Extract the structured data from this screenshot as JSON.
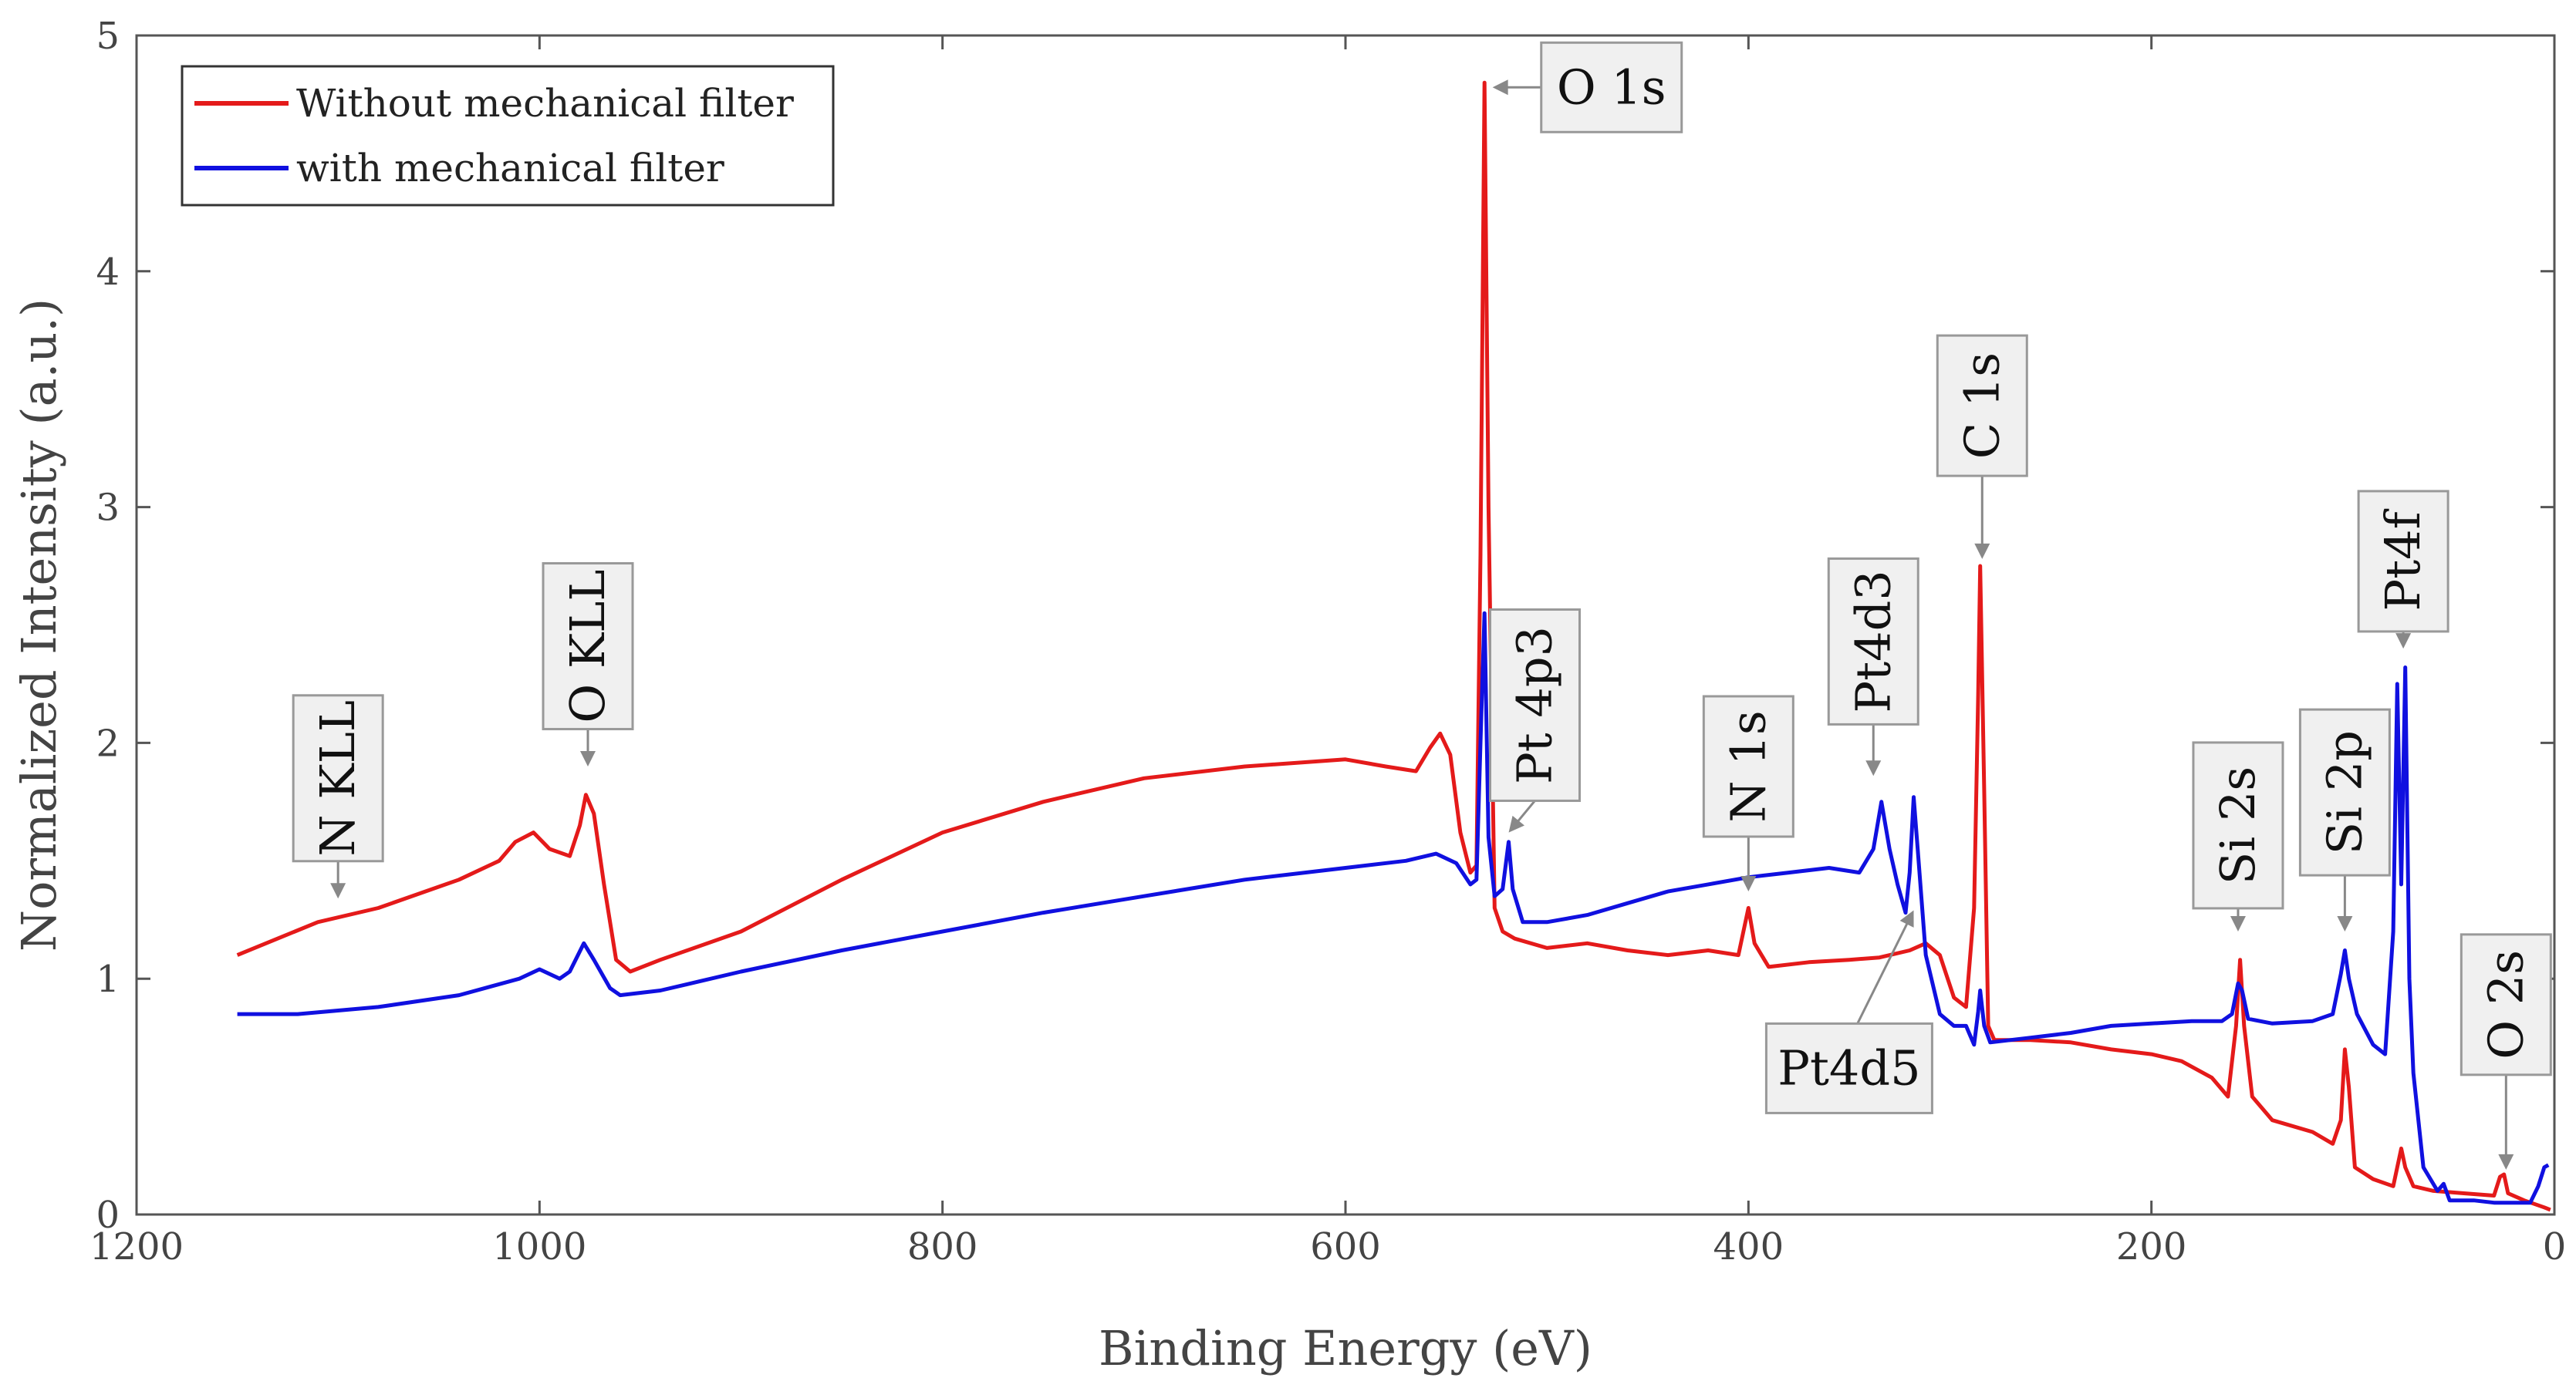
{
  "chart_data": {
    "type": "line",
    "title": "",
    "xlabel": "Binding Energy (eV)",
    "ylabel": "Normalized Intensity (a.u.)",
    "xlim": [
      1200,
      0
    ],
    "ylim": [
      0,
      5
    ],
    "x_ticks": [
      1200,
      1000,
      800,
      600,
      400,
      200,
      0
    ],
    "y_ticks": [
      0,
      1,
      2,
      3,
      4,
      5
    ],
    "x_tick_labels": [
      "1200",
      "1000",
      "800",
      "600",
      "400",
      "200",
      "0"
    ],
    "y_tick_labels": [
      "0",
      "1",
      "2",
      "3",
      "4",
      "5"
    ],
    "legend_position": "top-left",
    "series": [
      {
        "name": "Without mechanical filter",
        "color": "#e41a1a",
        "points": [
          [
            1150,
            1.1
          ],
          [
            1110,
            1.24
          ],
          [
            1080,
            1.3
          ],
          [
            1040,
            1.42
          ],
          [
            1020,
            1.5
          ],
          [
            1012,
            1.58
          ],
          [
            1003,
            1.62
          ],
          [
            995,
            1.55
          ],
          [
            985,
            1.52
          ],
          [
            980,
            1.65
          ],
          [
            977,
            1.78
          ],
          [
            973,
            1.7
          ],
          [
            968,
            1.4
          ],
          [
            962,
            1.08
          ],
          [
            955,
            1.03
          ],
          [
            940,
            1.08
          ],
          [
            900,
            1.2
          ],
          [
            850,
            1.42
          ],
          [
            800,
            1.62
          ],
          [
            750,
            1.75
          ],
          [
            700,
            1.85
          ],
          [
            650,
            1.9
          ],
          [
            600,
            1.93
          ],
          [
            580,
            1.9
          ],
          [
            565,
            1.88
          ],
          [
            558,
            1.98
          ],
          [
            553,
            2.04
          ],
          [
            548,
            1.95
          ],
          [
            543,
            1.62
          ],
          [
            538,
            1.45
          ],
          [
            535,
            1.48
          ],
          [
            533,
            2.8
          ],
          [
            531,
            4.8
          ],
          [
            529,
            3.0
          ],
          [
            526,
            1.3
          ],
          [
            522,
            1.2
          ],
          [
            516,
            1.17
          ],
          [
            500,
            1.13
          ],
          [
            480,
            1.15
          ],
          [
            460,
            1.12
          ],
          [
            440,
            1.1
          ],
          [
            420,
            1.12
          ],
          [
            405,
            1.1
          ],
          [
            402,
            1.22
          ],
          [
            400,
            1.3
          ],
          [
            397,
            1.15
          ],
          [
            390,
            1.05
          ],
          [
            370,
            1.07
          ],
          [
            350,
            1.08
          ],
          [
            335,
            1.09
          ],
          [
            320,
            1.12
          ],
          [
            312,
            1.15
          ],
          [
            305,
            1.1
          ],
          [
            298,
            0.92
          ],
          [
            292,
            0.88
          ],
          [
            288,
            1.3
          ],
          [
            286,
            2.2
          ],
          [
            285,
            2.75
          ],
          [
            283,
            1.8
          ],
          [
            281,
            0.8
          ],
          [
            278,
            0.74
          ],
          [
            260,
            0.74
          ],
          [
            240,
            0.73
          ],
          [
            220,
            0.7
          ],
          [
            200,
            0.68
          ],
          [
            185,
            0.65
          ],
          [
            170,
            0.58
          ],
          [
            162,
            0.5
          ],
          [
            158,
            0.8
          ],
          [
            156,
            1.08
          ],
          [
            154,
            0.8
          ],
          [
            150,
            0.5
          ],
          [
            140,
            0.4
          ],
          [
            120,
            0.35
          ],
          [
            110,
            0.3
          ],
          [
            106,
            0.4
          ],
          [
            104,
            0.7
          ],
          [
            102,
            0.54
          ],
          [
            99,
            0.2
          ],
          [
            90,
            0.15
          ],
          [
            80,
            0.12
          ],
          [
            76,
            0.28
          ],
          [
            74,
            0.2
          ],
          [
            70,
            0.12
          ],
          [
            60,
            0.1
          ],
          [
            45,
            0.09
          ],
          [
            30,
            0.08
          ],
          [
            27,
            0.16
          ],
          [
            25,
            0.17
          ],
          [
            23,
            0.09
          ],
          [
            15,
            0.06
          ],
          [
            5,
            0.03
          ],
          [
            2,
            0.02
          ]
        ]
      },
      {
        "name": "with mechanical filter",
        "color": "#1010e0",
        "points": [
          [
            1150,
            0.85
          ],
          [
            1120,
            0.85
          ],
          [
            1080,
            0.88
          ],
          [
            1040,
            0.93
          ],
          [
            1010,
            1.0
          ],
          [
            1000,
            1.04
          ],
          [
            990,
            1.0
          ],
          [
            985,
            1.03
          ],
          [
            978,
            1.15
          ],
          [
            973,
            1.08
          ],
          [
            965,
            0.96
          ],
          [
            960,
            0.93
          ],
          [
            940,
            0.95
          ],
          [
            900,
            1.03
          ],
          [
            850,
            1.12
          ],
          [
            800,
            1.2
          ],
          [
            750,
            1.28
          ],
          [
            700,
            1.35
          ],
          [
            650,
            1.42
          ],
          [
            600,
            1.47
          ],
          [
            570,
            1.5
          ],
          [
            555,
            1.53
          ],
          [
            545,
            1.49
          ],
          [
            538,
            1.4
          ],
          [
            535,
            1.42
          ],
          [
            533,
            2.0
          ],
          [
            531,
            2.55
          ],
          [
            529,
            1.6
          ],
          [
            526,
            1.35
          ],
          [
            522,
            1.38
          ],
          [
            519,
            1.58
          ],
          [
            517,
            1.38
          ],
          [
            512,
            1.24
          ],
          [
            500,
            1.24
          ],
          [
            480,
            1.27
          ],
          [
            460,
            1.32
          ],
          [
            440,
            1.37
          ],
          [
            420,
            1.4
          ],
          [
            400,
            1.43
          ],
          [
            380,
            1.45
          ],
          [
            360,
            1.47
          ],
          [
            345,
            1.45
          ],
          [
            338,
            1.55
          ],
          [
            334,
            1.75
          ],
          [
            330,
            1.55
          ],
          [
            326,
            1.4
          ],
          [
            322,
            1.28
          ],
          [
            320,
            1.45
          ],
          [
            318,
            1.77
          ],
          [
            316,
            1.55
          ],
          [
            312,
            1.1
          ],
          [
            305,
            0.85
          ],
          [
            298,
            0.8
          ],
          [
            292,
            0.8
          ],
          [
            290,
            0.76
          ],
          [
            288,
            0.72
          ],
          [
            286,
            0.86
          ],
          [
            285,
            0.95
          ],
          [
            283,
            0.8
          ],
          [
            280,
            0.73
          ],
          [
            260,
            0.75
          ],
          [
            240,
            0.77
          ],
          [
            220,
            0.8
          ],
          [
            200,
            0.81
          ],
          [
            180,
            0.82
          ],
          [
            165,
            0.82
          ],
          [
            160,
            0.85
          ],
          [
            157,
            0.98
          ],
          [
            155,
            0.95
          ],
          [
            152,
            0.83
          ],
          [
            140,
            0.81
          ],
          [
            120,
            0.82
          ],
          [
            110,
            0.85
          ],
          [
            106,
            1.02
          ],
          [
            104,
            1.12
          ],
          [
            102,
            1.0
          ],
          [
            98,
            0.85
          ],
          [
            90,
            0.72
          ],
          [
            84,
            0.68
          ],
          [
            80,
            1.2
          ],
          [
            78,
            2.25
          ],
          [
            76,
            1.4
          ],
          [
            74,
            2.32
          ],
          [
            72,
            1.0
          ],
          [
            70,
            0.6
          ],
          [
            65,
            0.2
          ],
          [
            58,
            0.1
          ],
          [
            55,
            0.13
          ],
          [
            52,
            0.06
          ],
          [
            40,
            0.06
          ],
          [
            30,
            0.05
          ],
          [
            20,
            0.05
          ],
          [
            12,
            0.05
          ],
          [
            8,
            0.12
          ],
          [
            5,
            0.2
          ],
          [
            3,
            0.21
          ]
        ]
      }
    ],
    "annotations": [
      {
        "text": "O 1s",
        "orientation": "horizontal",
        "box_x": 468,
        "box_y": 4.78,
        "arrow_to_x": 527,
        "arrow_to_y": 4.78
      },
      {
        "text": "N KLL",
        "orientation": "vertical",
        "box_x": 1100,
        "box_y": 1.85,
        "arrow_to_x": 1100,
        "arrow_to_y": 1.34
      },
      {
        "text": "O KLL",
        "orientation": "vertical",
        "box_x": 976,
        "box_y": 2.41,
        "arrow_to_x": 976,
        "arrow_to_y": 1.9
      },
      {
        "text": "Pt 4p3",
        "orientation": "vertical",
        "box_x": 506,
        "box_y": 2.16,
        "arrow_to_x": 519,
        "arrow_to_y": 1.62
      },
      {
        "text": "N 1s",
        "orientation": "vertical",
        "box_x": 400,
        "box_y": 1.9,
        "arrow_to_x": 400,
        "arrow_to_y": 1.37
      },
      {
        "text": "Pt4d3",
        "orientation": "vertical",
        "box_x": 338,
        "box_y": 2.43,
        "arrow_to_x": 338,
        "arrow_to_y": 1.86
      },
      {
        "text": "C 1s",
        "orientation": "vertical",
        "box_x": 284,
        "box_y": 3.43,
        "arrow_to_x": 284,
        "arrow_to_y": 2.78
      },
      {
        "text": "Si 2s",
        "orientation": "vertical",
        "box_x": 157,
        "box_y": 1.65,
        "arrow_to_x": 157,
        "arrow_to_y": 1.2
      },
      {
        "text": "Si 2p",
        "orientation": "vertical",
        "box_x": 104,
        "box_y": 1.79,
        "arrow_to_x": 104,
        "arrow_to_y": 1.2
      },
      {
        "text": "Pt4f",
        "orientation": "vertical",
        "box_x": 75,
        "box_y": 2.77,
        "arrow_to_x": 75,
        "arrow_to_y": 2.4
      },
      {
        "text": "O 2s",
        "orientation": "vertical",
        "box_x": 24,
        "box_y": 0.89,
        "arrow_to_x": 24,
        "arrow_to_y": 0.19
      },
      {
        "text": "Pt4d5",
        "orientation": "horizontal",
        "box_x": 350,
        "box_y": 0.62,
        "arrow_to_x": 318,
        "arrow_to_y": 1.29
      }
    ]
  }
}
